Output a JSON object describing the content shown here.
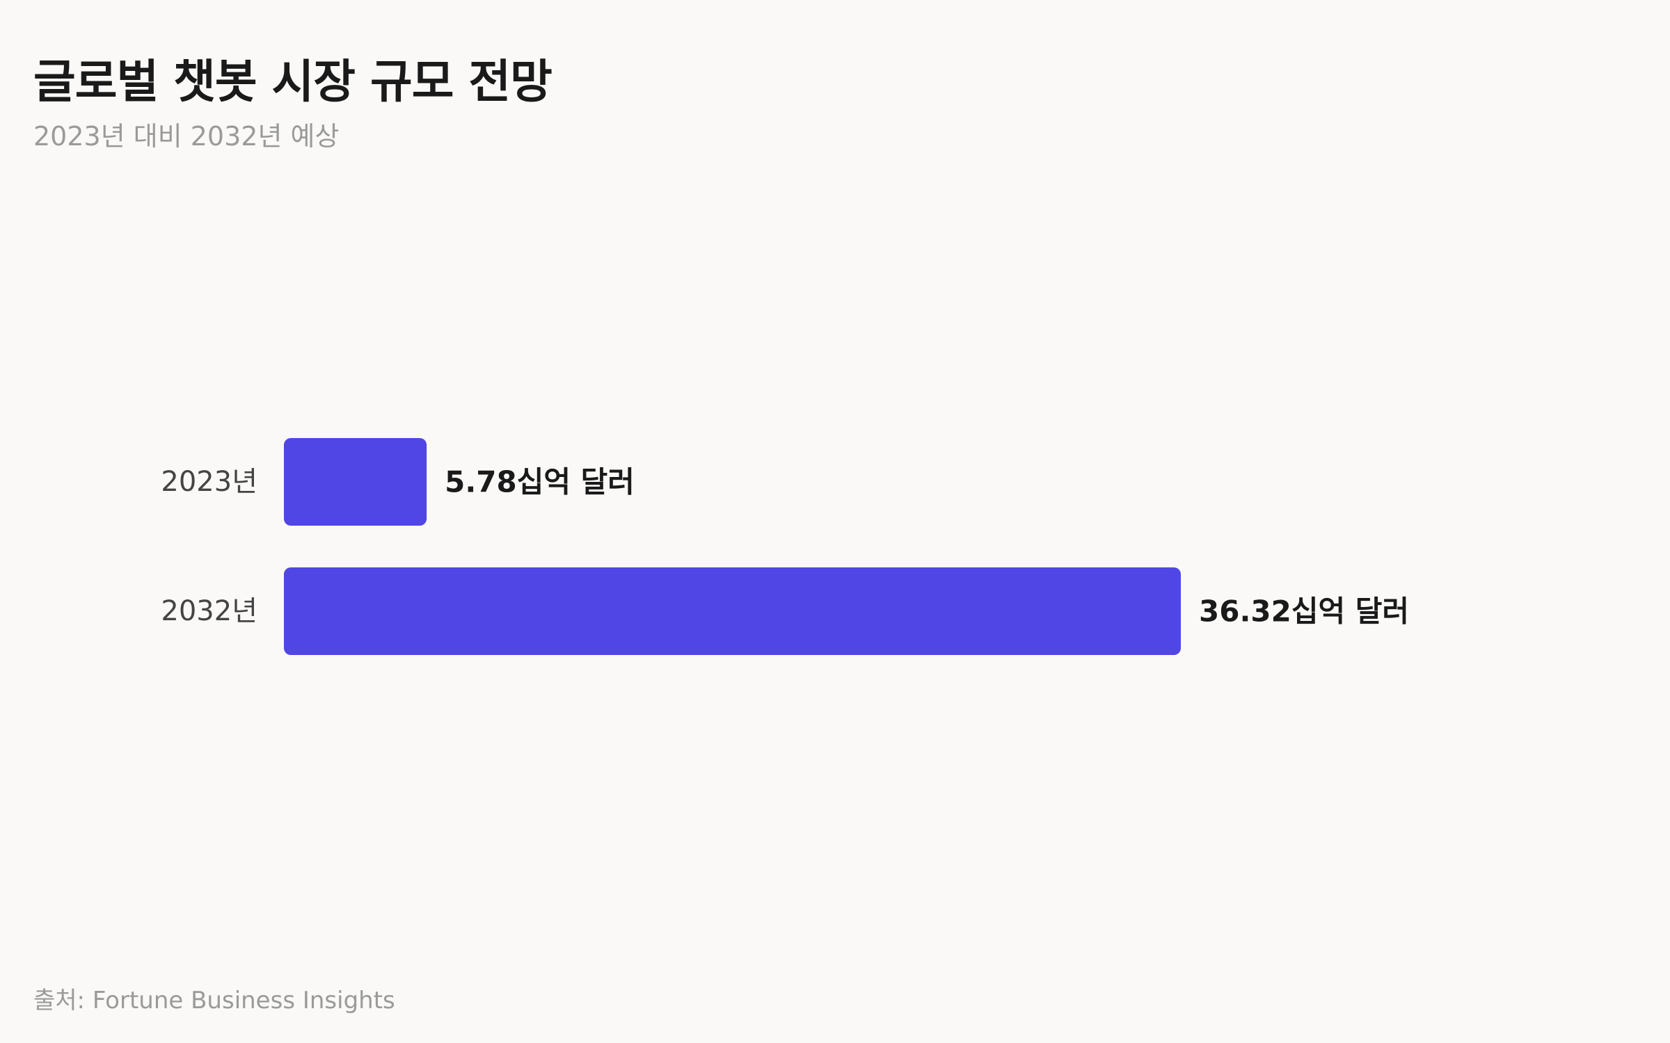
{
  "header": {
    "title": "글로벌 챗봇 시장 규모 전망",
    "subtitle": "2023년 대비 2032년 예상"
  },
  "footer": {
    "source": "출처: Fortune Business Insights"
  },
  "colors": {
    "bar": "#5046e5",
    "category_label": "#444444",
    "value_label": "#1a1a1a",
    "background": "#faf9f7"
  },
  "chart_data": {
    "type": "bar",
    "orientation": "horizontal",
    "categories": [
      "2023년",
      "2032년"
    ],
    "values": [
      5.78,
      36.32
    ],
    "value_labels": [
      "5.78십억 달러",
      "36.32십억 달러"
    ],
    "unit": "십억 달러",
    "title": "글로벌 챗봇 시장 규모 전망",
    "subtitle": "2023년 대비 2032년 예상",
    "xlabel": "",
    "ylabel": "",
    "grid": false,
    "legend": "none"
  }
}
